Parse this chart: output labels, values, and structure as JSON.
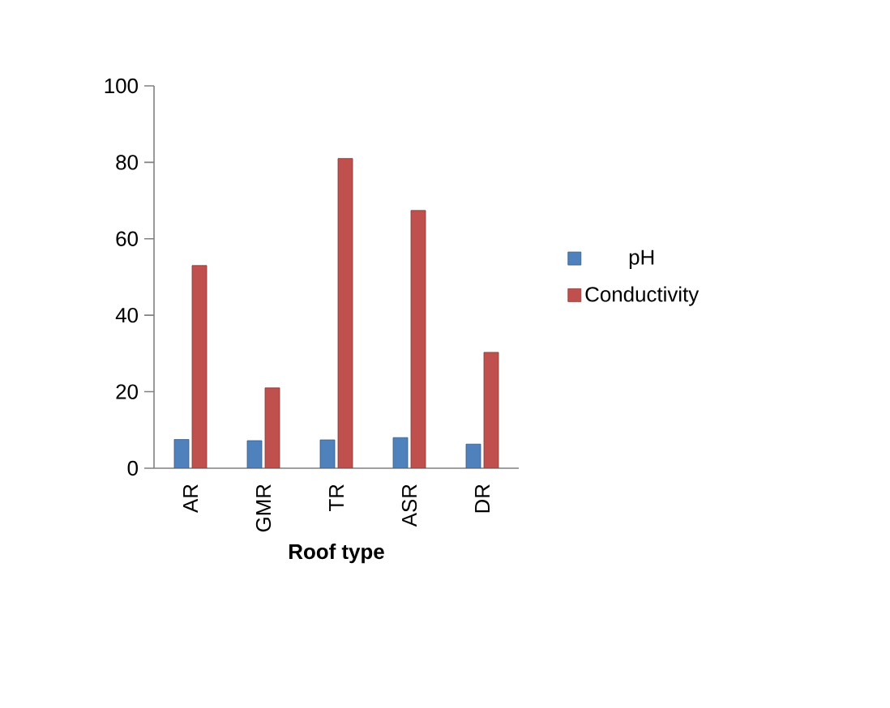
{
  "chart_data": {
    "type": "bar",
    "xlabel": "Roof type",
    "categories": [
      "AR",
      "GMR",
      "TR",
      "ASR",
      "DR"
    ],
    "series": [
      {
        "name": "pH",
        "color": "#4f81bd",
        "values": [
          7.5,
          7.2,
          7.4,
          8.0,
          6.3
        ]
      },
      {
        "name": "Conductivity",
        "color": "#c0504d",
        "values": [
          53,
          21,
          81,
          67.4,
          30.3
        ]
      }
    ],
    "ylim": [
      0,
      100
    ],
    "yticks": [
      0,
      20,
      40,
      60,
      80,
      100
    ],
    "legend": "right",
    "grid": false
  }
}
